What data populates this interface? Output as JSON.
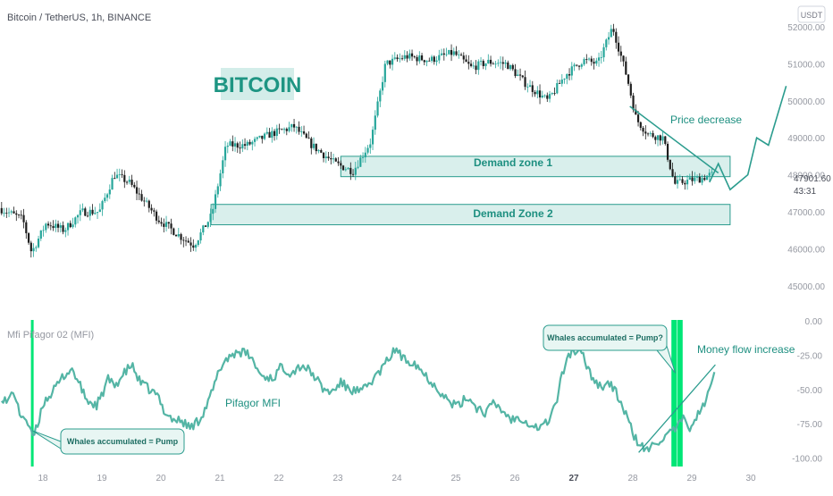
{
  "header": {
    "symbol_line": "Bitcoin / TetherUS, 1h, BINANCE",
    "currency_badge": "USDT"
  },
  "indicator": {
    "title": "Mfi Pifagor 02 (MFI)"
  },
  "colors": {
    "up_candle": "#26a69a",
    "down_candle": "#1e1e1e",
    "zone_fill": "#d9efec",
    "zone_stroke": "#2b9c8e",
    "mfi_line": "#54b5a5",
    "annotation_text": "#1d8f80",
    "highlight_bar": "#00e676",
    "axis_text": "#9598a1"
  },
  "price_pane": {
    "y_ticks": [
      "52000.00",
      "51000.00",
      "50000.00",
      "49000.00",
      "48000.00",
      "47000.00",
      "46000.00",
      "45000.00"
    ],
    "last_price": "47901.60",
    "countdown": "43:31"
  },
  "mfi_pane": {
    "y_ticks": [
      "0.00",
      "-25.00",
      "-50.00",
      "-75.00",
      "-100.00"
    ]
  },
  "x_axis": {
    "ticks": [
      "18",
      "19",
      "20",
      "21",
      "22",
      "23",
      "24",
      "25",
      "26",
      "27",
      "28",
      "29",
      "30"
    ],
    "bold_ticks": [
      "27"
    ]
  },
  "annotations": {
    "bitcoin_label": "BITCOIN",
    "demand_zone_1": "Demand zone 1",
    "demand_zone_2": "Demand Zone 2",
    "price_decrease": "Price decrease",
    "pifagor_mfi": "Pifagor MFI",
    "whales_left": "Whales accumulated = Pump",
    "whales_right": "Whales accumulated = Pump?",
    "money_flow": "Money flow increase"
  },
  "chart_data": [
    {
      "type": "candlestick",
      "title": "Bitcoin / TetherUS, 1h, BINANCE",
      "x_range": [
        17.3,
        30.4
      ],
      "ylim": [
        44800,
        52300
      ],
      "zones": [
        {
          "label": "Demand zone 1",
          "x": [
            23.05,
            29.65
          ],
          "y": [
            47950,
            48500
          ]
        },
        {
          "label": "Demand Zone 2",
          "x": [
            20.85,
            29.65
          ],
          "y": [
            46650,
            47200
          ]
        }
      ],
      "price_path": [
        [
          17.3,
          47100
        ],
        [
          17.7,
          46800
        ],
        [
          17.85,
          45900
        ],
        [
          18.1,
          46700
        ],
        [
          18.4,
          46500
        ],
        [
          18.7,
          47000
        ],
        [
          19.0,
          47000
        ],
        [
          19.25,
          48000
        ],
        [
          19.5,
          47800
        ],
        [
          19.8,
          47200
        ],
        [
          20.0,
          46800
        ],
        [
          20.4,
          46300
        ],
        [
          20.6,
          46100
        ],
        [
          20.9,
          46900
        ],
        [
          21.15,
          48800
        ],
        [
          21.5,
          48800
        ],
        [
          21.9,
          49100
        ],
        [
          22.3,
          49300
        ],
        [
          22.6,
          48800
        ],
        [
          23.0,
          48300
        ],
        [
          23.3,
          48100
        ],
        [
          23.6,
          48900
        ],
        [
          23.85,
          51000
        ],
        [
          24.2,
          51200
        ],
        [
          24.6,
          51100
        ],
        [
          25.0,
          51300
        ],
        [
          25.3,
          50900
        ],
        [
          25.6,
          51050
        ],
        [
          25.9,
          51000
        ],
        [
          26.2,
          50500
        ],
        [
          26.6,
          50000
        ],
        [
          26.9,
          50700
        ],
        [
          27.2,
          51100
        ],
        [
          27.45,
          51000
        ],
        [
          27.7,
          52000
        ],
        [
          27.95,
          50600
        ],
        [
          28.1,
          49500
        ],
        [
          28.3,
          49100
        ],
        [
          28.55,
          49000
        ],
        [
          28.75,
          47750
        ],
        [
          29.0,
          47850
        ],
        [
          29.2,
          47900
        ],
        [
          29.35,
          48000
        ]
      ],
      "projection": [
        [
          29.3,
          47800
        ],
        [
          29.45,
          48300
        ],
        [
          29.65,
          47600
        ],
        [
          29.95,
          48000
        ],
        [
          30.1,
          49000
        ],
        [
          30.3,
          48800
        ],
        [
          30.6,
          50400
        ]
      ]
    },
    {
      "type": "line",
      "title": "Mfi Pifagor 02 (MFI)",
      "ylim": [
        -105,
        5
      ],
      "series": [
        {
          "points": [
            [
              17.3,
              -55
            ],
            [
              17.4,
              -60
            ],
            [
              17.5,
              -50
            ],
            [
              17.6,
              -68
            ],
            [
              17.7,
              -70
            ],
            [
              17.82,
              -85
            ],
            [
              17.9,
              -78
            ],
            [
              18.0,
              -60
            ],
            [
              18.1,
              -55
            ],
            [
              18.2,
              -50
            ],
            [
              18.35,
              -40
            ],
            [
              18.5,
              -35
            ],
            [
              18.6,
              -45
            ],
            [
              18.75,
              -58
            ],
            [
              18.9,
              -62
            ],
            [
              19.0,
              -55
            ],
            [
              19.1,
              -42
            ],
            [
              19.2,
              -48
            ],
            [
              19.35,
              -40
            ],
            [
              19.5,
              -32
            ],
            [
              19.65,
              -45
            ],
            [
              19.8,
              -50
            ],
            [
              19.95,
              -55
            ],
            [
              20.05,
              -65
            ],
            [
              20.2,
              -72
            ],
            [
              20.35,
              -73
            ],
            [
              20.5,
              -78
            ],
            [
              20.65,
              -72
            ],
            [
              20.8,
              -60
            ],
            [
              20.9,
              -48
            ],
            [
              21.0,
              -35
            ],
            [
              21.1,
              -28
            ],
            [
              21.3,
              -22
            ],
            [
              21.5,
              -25
            ],
            [
              21.7,
              -40
            ],
            [
              21.9,
              -42
            ],
            [
              22.05,
              -33
            ],
            [
              22.2,
              -38
            ],
            [
              22.4,
              -32
            ],
            [
              22.6,
              -40
            ],
            [
              22.75,
              -50
            ],
            [
              22.9,
              -52
            ],
            [
              23.05,
              -45
            ],
            [
              23.2,
              -50
            ],
            [
              23.4,
              -52
            ],
            [
              23.55,
              -45
            ],
            [
              23.75,
              -35
            ],
            [
              23.9,
              -25
            ],
            [
              24.0,
              -20
            ],
            [
              24.1,
              -28
            ],
            [
              24.3,
              -30
            ],
            [
              24.45,
              -38
            ],
            [
              24.6,
              -45
            ],
            [
              24.75,
              -52
            ],
            [
              24.9,
              -60
            ],
            [
              25.05,
              -62
            ],
            [
              25.2,
              -55
            ],
            [
              25.35,
              -63
            ],
            [
              25.5,
              -67
            ],
            [
              25.65,
              -60
            ],
            [
              25.8,
              -66
            ],
            [
              25.95,
              -72
            ],
            [
              26.1,
              -70
            ],
            [
              26.25,
              -75
            ],
            [
              26.4,
              -78
            ],
            [
              26.55,
              -74
            ],
            [
              26.7,
              -60
            ],
            [
              26.8,
              -40
            ],
            [
              26.9,
              -25
            ],
            [
              27.0,
              -22
            ],
            [
              27.15,
              -25
            ],
            [
              27.3,
              -40
            ],
            [
              27.45,
              -48
            ],
            [
              27.6,
              -45
            ],
            [
              27.75,
              -55
            ],
            [
              27.9,
              -70
            ],
            [
              28.0,
              -82
            ],
            [
              28.1,
              -90
            ],
            [
              28.25,
              -95
            ],
            [
              28.4,
              -88
            ],
            [
              28.55,
              -85
            ],
            [
              28.7,
              -80
            ],
            [
              28.85,
              -72
            ],
            [
              28.95,
              -78
            ],
            [
              29.05,
              -72
            ],
            [
              29.2,
              -62
            ],
            [
              29.35,
              -45
            ],
            [
              29.4,
              -30
            ]
          ]
        }
      ],
      "highlight_x": [
        17.82,
        28.7,
        28.8
      ]
    }
  ]
}
